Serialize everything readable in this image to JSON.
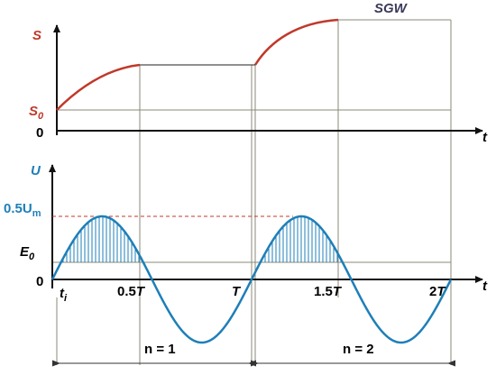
{
  "title": "SGW",
  "top_axis": {
    "y_label": "S",
    "s0_label": {
      "main": "S",
      "sub": "0"
    },
    "zero_label": "0",
    "x_label": "t"
  },
  "bottom_axis": {
    "y_label": "U",
    "um_label": {
      "main": "0.5U",
      "sub": "m"
    },
    "e0_label": {
      "main": "E",
      "sub": "0"
    },
    "zero_label": "0",
    "x_label": "t"
  },
  "time_labels": [
    {
      "main": "t",
      "sub": "i"
    },
    {
      "main": "0.5",
      "italic": "T"
    },
    {
      "main": "",
      "italic": "T"
    },
    {
      "main": "1.5",
      "italic": "T"
    },
    {
      "main": "2",
      "italic": "T"
    }
  ],
  "periods": [
    "n = 1",
    "n = 2"
  ]
}
